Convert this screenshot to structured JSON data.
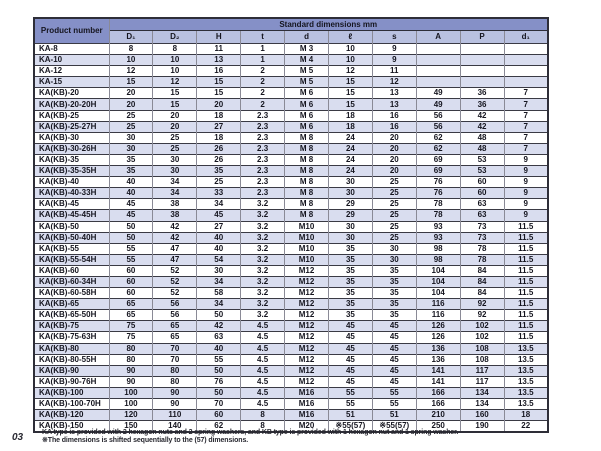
{
  "page": {
    "number": "03"
  },
  "table": {
    "header": {
      "product_col": "Product number",
      "group": "Standard dimensions   mm"
    },
    "columns": [
      "D₁",
      "D₂",
      "H",
      "t",
      "d",
      "ℓ",
      "s",
      "A",
      "P",
      "d₁"
    ],
    "rows": [
      {
        "product": "KA-8",
        "values": [
          "8",
          "8",
          "11",
          "1",
          "M 3",
          "10",
          "9",
          "",
          "",
          ""
        ]
      },
      {
        "product": "KA-10",
        "values": [
          "10",
          "10",
          "13",
          "1",
          "M 4",
          "10",
          "9",
          "",
          "",
          ""
        ]
      },
      {
        "product": "KA-12",
        "values": [
          "12",
          "10",
          "16",
          "2",
          "M 5",
          "12",
          "11",
          "",
          "",
          ""
        ]
      },
      {
        "product": "KA-15",
        "values": [
          "15",
          "12",
          "15",
          "2",
          "M 5",
          "15",
          "12",
          "",
          "",
          ""
        ]
      },
      {
        "product": "KA(KB)-20",
        "values": [
          "20",
          "15",
          "15",
          "2",
          "M 6",
          "15",
          "13",
          "49",
          "36",
          "7"
        ]
      },
      {
        "product": "KA(KB)-20-20H",
        "values": [
          "20",
          "15",
          "20",
          "2",
          "M 6",
          "15",
          "13",
          "49",
          "36",
          "7"
        ]
      },
      {
        "product": "KA(KB)-25",
        "values": [
          "25",
          "20",
          "18",
          "2.3",
          "M 6",
          "18",
          "16",
          "56",
          "42",
          "7"
        ]
      },
      {
        "product": "KA(KB)-25-27H",
        "values": [
          "25",
          "20",
          "27",
          "2.3",
          "M 6",
          "18",
          "16",
          "56",
          "42",
          "7"
        ]
      },
      {
        "product": "KA(KB)-30",
        "values": [
          "30",
          "25",
          "18",
          "2.3",
          "M 8",
          "24",
          "20",
          "62",
          "48",
          "7"
        ]
      },
      {
        "product": "KA(KB)-30-26H",
        "values": [
          "30",
          "25",
          "26",
          "2.3",
          "M 8",
          "24",
          "20",
          "62",
          "48",
          "7"
        ]
      },
      {
        "product": "KA(KB)-35",
        "values": [
          "35",
          "30",
          "26",
          "2.3",
          "M 8",
          "24",
          "20",
          "69",
          "53",
          "9"
        ]
      },
      {
        "product": "KA(KB)-35-35H",
        "values": [
          "35",
          "30",
          "35",
          "2.3",
          "M 8",
          "24",
          "20",
          "69",
          "53",
          "9"
        ]
      },
      {
        "product": "KA(KB)-40",
        "values": [
          "40",
          "34",
          "25",
          "2.3",
          "M 8",
          "30",
          "25",
          "76",
          "60",
          "9"
        ]
      },
      {
        "product": "KA(KB)-40-33H",
        "values": [
          "40",
          "34",
          "33",
          "2.3",
          "M 8",
          "30",
          "25",
          "76",
          "60",
          "9"
        ]
      },
      {
        "product": "KA(KB)-45",
        "values": [
          "45",
          "38",
          "34",
          "3.2",
          "M 8",
          "29",
          "25",
          "78",
          "63",
          "9"
        ]
      },
      {
        "product": "KA(KB)-45-45H",
        "values": [
          "45",
          "38",
          "45",
          "3.2",
          "M 8",
          "29",
          "25",
          "78",
          "63",
          "9"
        ]
      },
      {
        "product": "KA(KB)-50",
        "values": [
          "50",
          "42",
          "27",
          "3.2",
          "M10",
          "30",
          "25",
          "93",
          "73",
          "11.5"
        ]
      },
      {
        "product": "KA(KB)-50-40H",
        "values": [
          "50",
          "42",
          "40",
          "3.2",
          "M10",
          "30",
          "25",
          "93",
          "73",
          "11.5"
        ]
      },
      {
        "product": "KA(KB)-55",
        "values": [
          "55",
          "47",
          "40",
          "3.2",
          "M10",
          "35",
          "30",
          "98",
          "78",
          "11.5"
        ]
      },
      {
        "product": "KA(KB)-55-54H",
        "values": [
          "55",
          "47",
          "54",
          "3.2",
          "M10",
          "35",
          "30",
          "98",
          "78",
          "11.5"
        ]
      },
      {
        "product": "KA(KB)-60",
        "values": [
          "60",
          "52",
          "30",
          "3.2",
          "M12",
          "35",
          "35",
          "104",
          "84",
          "11.5"
        ]
      },
      {
        "product": "KA(KB)-60-34H",
        "values": [
          "60",
          "52",
          "34",
          "3.2",
          "M12",
          "35",
          "35",
          "104",
          "84",
          "11.5"
        ]
      },
      {
        "product": "KA(KB)-60-58H",
        "values": [
          "60",
          "52",
          "58",
          "3.2",
          "M12",
          "35",
          "35",
          "104",
          "84",
          "11.5"
        ]
      },
      {
        "product": "KA(KB)-65",
        "values": [
          "65",
          "56",
          "34",
          "3.2",
          "M12",
          "35",
          "35",
          "116",
          "92",
          "11.5"
        ]
      },
      {
        "product": "KA(KB)-65-50H",
        "values": [
          "65",
          "56",
          "50",
          "3.2",
          "M12",
          "35",
          "35",
          "116",
          "92",
          "11.5"
        ]
      },
      {
        "product": "KA(KB)-75",
        "values": [
          "75",
          "65",
          "42",
          "4.5",
          "M12",
          "45",
          "45",
          "126",
          "102",
          "11.5"
        ]
      },
      {
        "product": "KA(KB)-75-63H",
        "values": [
          "75",
          "65",
          "63",
          "4.5",
          "M12",
          "45",
          "45",
          "126",
          "102",
          "11.5"
        ]
      },
      {
        "product": "KA(KB)-80",
        "values": [
          "80",
          "70",
          "40",
          "4.5",
          "M12",
          "45",
          "45",
          "136",
          "108",
          "13.5"
        ]
      },
      {
        "product": "KA(KB)-80-55H",
        "values": [
          "80",
          "70",
          "55",
          "4.5",
          "M12",
          "45",
          "45",
          "136",
          "108",
          "13.5"
        ]
      },
      {
        "product": "KA(KB)-90",
        "values": [
          "90",
          "80",
          "50",
          "4.5",
          "M12",
          "45",
          "45",
          "141",
          "117",
          "13.5"
        ]
      },
      {
        "product": "KA(KB)-90-76H",
        "values": [
          "90",
          "80",
          "76",
          "4.5",
          "M12",
          "45",
          "45",
          "141",
          "117",
          "13.5"
        ]
      },
      {
        "product": "KA(KB)-100",
        "values": [
          "100",
          "90",
          "50",
          "4.5",
          "M16",
          "55",
          "55",
          "166",
          "134",
          "13.5"
        ]
      },
      {
        "product": "KA(KB)-100-70H",
        "values": [
          "100",
          "90",
          "70",
          "4.5",
          "M16",
          "55",
          "55",
          "166",
          "134",
          "13.5"
        ]
      },
      {
        "product": "KA(KB)-120",
        "values": [
          "120",
          "110",
          "60",
          "8",
          "M16",
          "51",
          "51",
          "210",
          "160",
          "18"
        ]
      },
      {
        "product": "KA(KB)-150",
        "values": [
          "150",
          "140",
          "62",
          "8",
          "M20",
          "※55(57)",
          "※55(57)",
          "250",
          "190",
          "22"
        ]
      }
    ]
  },
  "footnotes": [
    "KA type is provided with 2 hexagon nuts and 2 spring washers, and KB type is provided with 1 hexagon nut and 1 spring washer.",
    "※The dimensions is shifted sequentially to the (57) dimensions."
  ]
}
